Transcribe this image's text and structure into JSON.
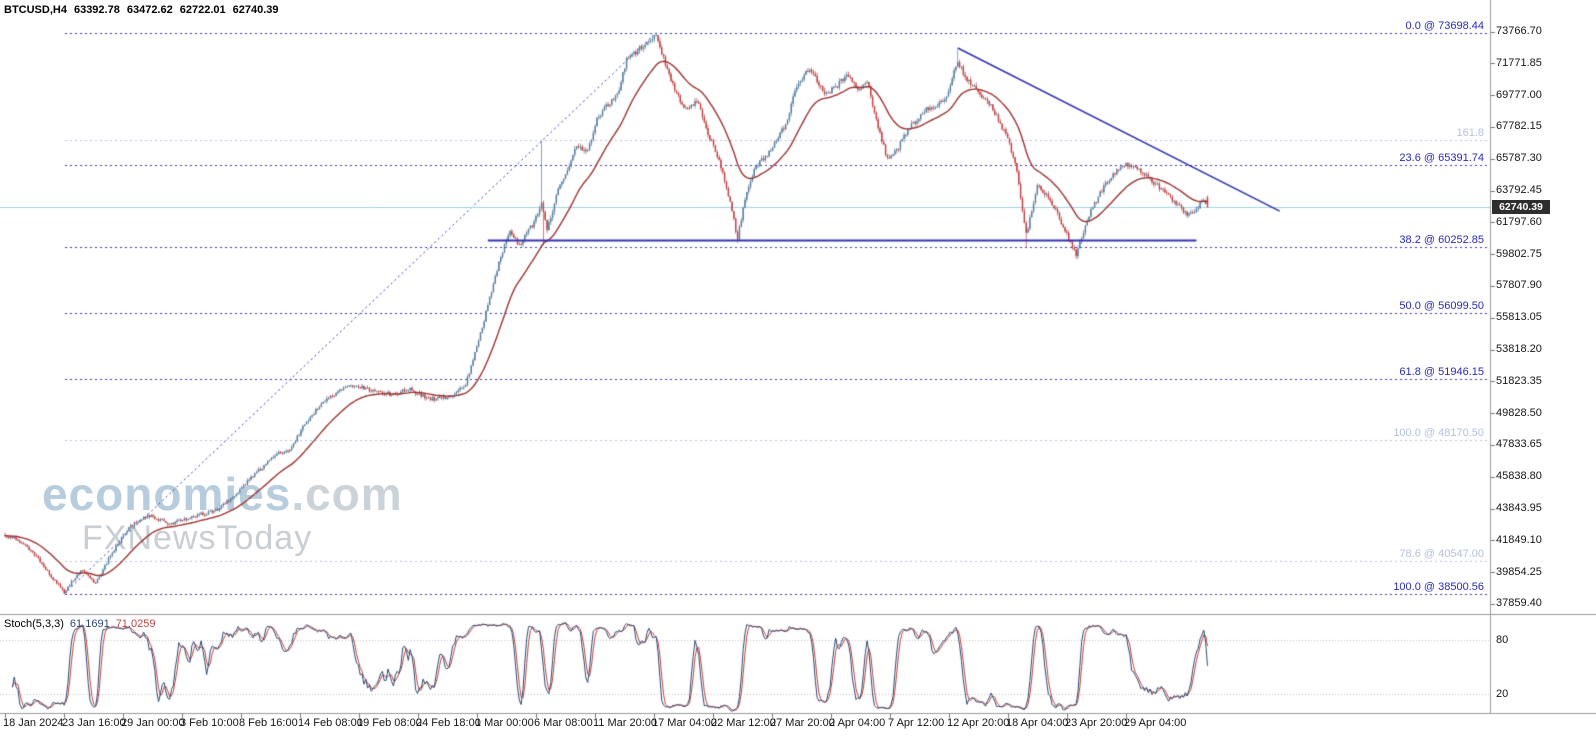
{
  "header": {
    "symbol_period": "BTCUSD,H4",
    "open": "63392.78",
    "high": "63472.62",
    "low": "62722.01",
    "close": "62740.39"
  },
  "watermark": {
    "brand": "economies",
    "brand_suffix": ".com",
    "tagline": "FXNewsToday"
  },
  "price_axis": {
    "labels": [
      "73766.70",
      "71771.85",
      "69777.00",
      "67782.15",
      "65787.30",
      "63792.45",
      "61797.60",
      "59802.75",
      "57807.90",
      "55813.05",
      "53818.20",
      "51823.35",
      "49828.50",
      "47833.65",
      "45838.80",
      "43843.95",
      "41849.10",
      "39854.25",
      "37859.40"
    ],
    "current_price": "62740.39"
  },
  "time_axis": {
    "labels": [
      "18 Jan 2024",
      "23 Jan 16:00",
      "29 Jan 00:00",
      "3 Feb 10:00",
      "8 Feb 16:00",
      "14 Feb 08:00",
      "19 Feb 08:00",
      "24 Feb 18:00",
      "1 Mar 00:00",
      "6 Mar 08:00",
      "11 Mar 20:00",
      "17 Mar 04:00",
      "22 Mar 12:00",
      "27 Mar 20:00",
      "2 Apr 04:00",
      "7 Apr 12:00",
      "12 Apr 20:00",
      "18 Apr 04:00",
      "23 Apr 20:00",
      "29 Apr 04:00"
    ]
  },
  "fibonacci": {
    "levels": [
      {
        "label": "0.0 @ 73698.44",
        "price": 73698.44
      },
      {
        "label": "23.6 @ 65391.74",
        "price": 65391.74
      },
      {
        "label": "38.2 @ 60252.85",
        "price": 60252.85
      },
      {
        "label": "50.0 @ 56099.50",
        "price": 56099.5
      },
      {
        "label": "61.8 @ 51946.15",
        "price": 51946.15
      },
      {
        "label": "100.0 @ 38500.56",
        "price": 38500.56
      }
    ],
    "faint_levels": [
      {
        "label": "161.8",
        "price": 66960.0
      },
      {
        "label": "100.0 @ 48170.50",
        "price": 48170.5
      },
      {
        "label": "78.6 @ 40547.00",
        "price": 40547.0
      }
    ],
    "anchor_low": {
      "index": 32,
      "price": 38500.56
    },
    "anchor_high": {
      "index": 352,
      "price": 73698.44
    }
  },
  "stochastic": {
    "label": "Stoch(5,3,3)",
    "value_main": "61.1691",
    "value_signal": "71.0259",
    "scale_labels": [
      "80",
      "20"
    ],
    "levels": [
      80,
      20
    ]
  },
  "lines": {
    "support": {
      "price": 60690,
      "from_index": 261,
      "to_index": 644
    },
    "trendline": {
      "from": {
        "index": 515,
        "price": 72730
      },
      "to": {
        "index": 689,
        "price": 62500
      }
    }
  },
  "colors": {
    "bull": "#5a7f9d",
    "bear": "#c14444",
    "ma": "#9b3333",
    "fib": "#3a3ab8",
    "fib_faint": "#b9c5e0",
    "object_line": "#3333b0",
    "current_price_line": "#9fd3e8",
    "badge_bg": "#2e2e2e",
    "stoch_main": "#2c4a70",
    "stoch_signal": "#c04545"
  },
  "chart_data": {
    "type": "candlestick",
    "symbol": "BTCUSD",
    "timeframe": "H4",
    "title": "BTCUSD,H4 63392.78 63472.62 62722.01 62740.39",
    "x_start": "18 Jan 2024",
    "x_end": "29 Apr 2024",
    "ylim": [
      37859.4,
      73766.7
    ],
    "visible_high": 73698.44,
    "visible_low": 38500.56,
    "candle_count": 651,
    "note": "price_path_anchors are [candle_index, close_price] waypoints read off the chart; candles between anchors follow this path",
    "price_path_anchors": [
      [
        0,
        42200
      ],
      [
        8,
        41800
      ],
      [
        16,
        41000
      ],
      [
        24,
        39700
      ],
      [
        32,
        38600
      ],
      [
        41,
        40000
      ],
      [
        49,
        39150
      ],
      [
        57,
        40900
      ],
      [
        68,
        42800
      ],
      [
        78,
        43400
      ],
      [
        89,
        42850
      ],
      [
        103,
        43400
      ],
      [
        114,
        43700
      ],
      [
        124,
        44700
      ],
      [
        135,
        46000
      ],
      [
        146,
        47200
      ],
      [
        154,
        47550
      ],
      [
        162,
        49100
      ],
      [
        170,
        50300
      ],
      [
        178,
        51000
      ],
      [
        186,
        51600
      ],
      [
        197,
        51300
      ],
      [
        208,
        51000
      ],
      [
        219,
        51300
      ],
      [
        230,
        50700
      ],
      [
        241,
        50850
      ],
      [
        249,
        51600
      ],
      [
        256,
        54400
      ],
      [
        262,
        57000
      ],
      [
        268,
        59700
      ],
      [
        273,
        61300
      ],
      [
        278,
        60400
      ],
      [
        285,
        61600
      ],
      [
        290,
        63000
      ],
      [
        293,
        61200
      ],
      [
        298,
        63500
      ],
      [
        304,
        65100
      ],
      [
        309,
        66600
      ],
      [
        315,
        66300
      ],
      [
        320,
        68200
      ],
      [
        325,
        69100
      ],
      [
        331,
        69800
      ],
      [
        336,
        72000
      ],
      [
        342,
        72600
      ],
      [
        347,
        73200
      ],
      [
        352,
        73450
      ],
      [
        358,
        71350
      ],
      [
        363,
        69800
      ],
      [
        369,
        68850
      ],
      [
        374,
        69450
      ],
      [
        379,
        67600
      ],
      [
        385,
        66000
      ],
      [
        390,
        64100
      ],
      [
        396,
        60800
      ],
      [
        401,
        63800
      ],
      [
        406,
        65400
      ],
      [
        412,
        66000
      ],
      [
        417,
        67000
      ],
      [
        423,
        68200
      ],
      [
        428,
        70400
      ],
      [
        434,
        71350
      ],
      [
        439,
        70700
      ],
      [
        444,
        69800
      ],
      [
        450,
        70400
      ],
      [
        455,
        71000
      ],
      [
        461,
        70100
      ],
      [
        466,
        70700
      ],
      [
        471,
        68200
      ],
      [
        477,
        65700
      ],
      [
        482,
        66300
      ],
      [
        488,
        67600
      ],
      [
        493,
        68200
      ],
      [
        498,
        68850
      ],
      [
        504,
        69150
      ],
      [
        509,
        69800
      ],
      [
        515,
        71900
      ],
      [
        520,
        70700
      ],
      [
        525,
        70100
      ],
      [
        531,
        69450
      ],
      [
        536,
        68500
      ],
      [
        542,
        67000
      ],
      [
        547,
        65100
      ],
      [
        552,
        61000
      ],
      [
        558,
        64100
      ],
      [
        563,
        63500
      ],
      [
        569,
        62300
      ],
      [
        574,
        61000
      ],
      [
        579,
        59800
      ],
      [
        585,
        62000
      ],
      [
        590,
        63200
      ],
      [
        596,
        64400
      ],
      [
        601,
        65100
      ],
      [
        606,
        65400
      ],
      [
        612,
        65250
      ],
      [
        617,
        64750
      ],
      [
        623,
        64100
      ],
      [
        628,
        63500
      ],
      [
        634,
        62900
      ],
      [
        639,
        62300
      ],
      [
        644,
        62650
      ],
      [
        648,
        63300
      ],
      [
        650,
        62740.39
      ]
    ],
    "spikes": [
      {
        "i": 32,
        "low": 38500.56
      },
      {
        "i": 290,
        "high": 66900
      },
      {
        "i": 291,
        "low": 60350
      },
      {
        "i": 351,
        "high": 73400
      },
      {
        "i": 352,
        "high": 73698.44
      },
      {
        "i": 396,
        "low": 60520
      },
      {
        "i": 515,
        "high": 72640
      },
      {
        "i": 552,
        "low": 60250
      },
      {
        "i": 579,
        "low": 59560
      }
    ],
    "last_candle": {
      "open": 63392.78,
      "high": 63472.62,
      "low": 62722.01,
      "close": 62740.39
    },
    "indicators": {
      "moving_average": {
        "type": "smoothed",
        "approx_period": 28,
        "color": "#9b3333"
      },
      "stochastic": {
        "k_period": 5,
        "d_period": 3,
        "slowing": 3,
        "last_main": 61.1691,
        "last_signal": 71.0259,
        "scale": [
          0,
          100
        ],
        "marked_levels": [
          80,
          20
        ]
      }
    }
  }
}
